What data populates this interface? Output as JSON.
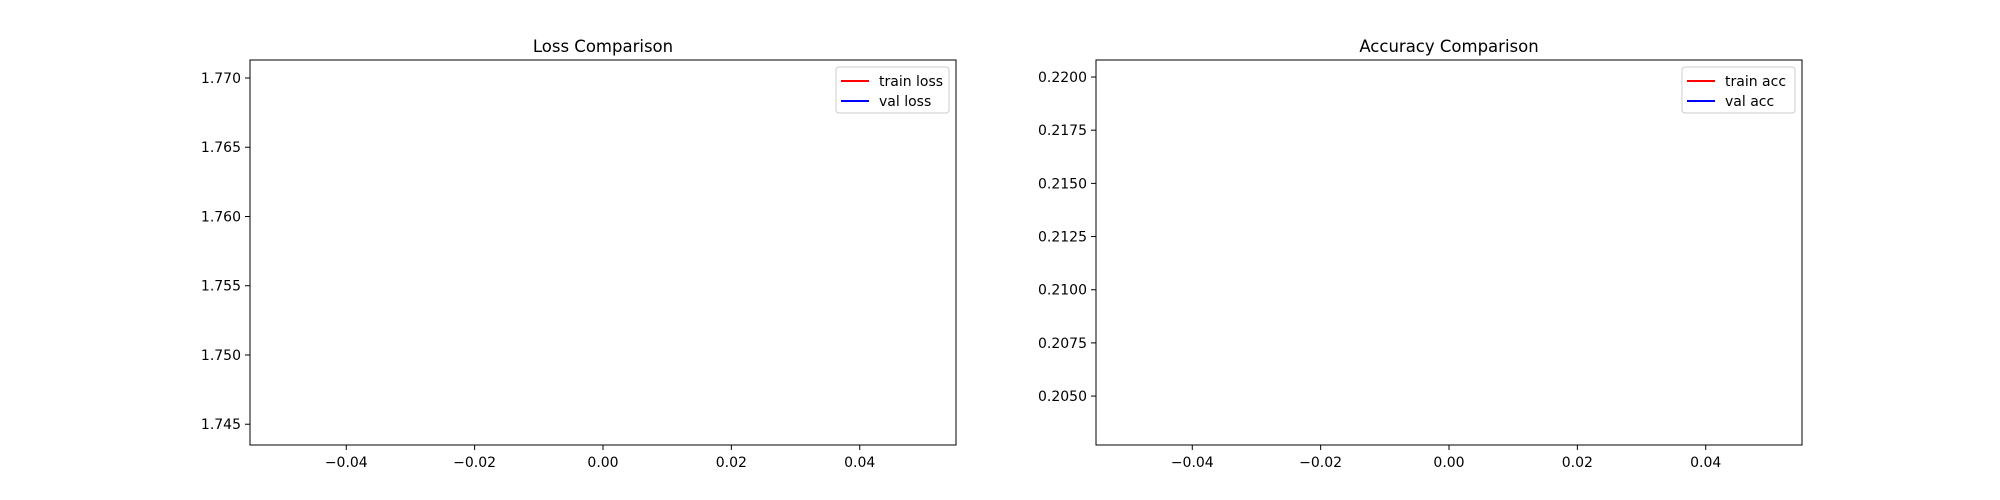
{
  "chart_data": [
    {
      "type": "line",
      "title": "Loss Comparison",
      "xlabel": "",
      "ylabel": "",
      "xlim": [
        -0.055,
        0.055
      ],
      "ylim": [
        1.7435,
        1.7713
      ],
      "xticks": [
        -0.04,
        -0.02,
        0.0,
        0.02,
        0.04
      ],
      "xtick_labels": [
        "−0.04",
        "−0.02",
        "0.00",
        "0.02",
        "0.04"
      ],
      "yticks": [
        1.745,
        1.75,
        1.755,
        1.76,
        1.765,
        1.77
      ],
      "ytick_labels": [
        "1.745",
        "1.750",
        "1.755",
        "1.760",
        "1.765",
        "1.770"
      ],
      "legend_position": "top-right",
      "series": [
        {
          "name": "train loss",
          "color": "#ff0000",
          "x": [],
          "y": []
        },
        {
          "name": "val loss",
          "color": "#0000ff",
          "x": [],
          "y": []
        }
      ]
    },
    {
      "type": "line",
      "title": "Accuracy Comparison",
      "xlabel": "",
      "ylabel": "",
      "xlim": [
        -0.055,
        0.055
      ],
      "ylim": [
        0.2027,
        0.2208
      ],
      "xticks": [
        -0.04,
        -0.02,
        0.0,
        0.02,
        0.04
      ],
      "xtick_labels": [
        "−0.04",
        "−0.02",
        "0.00",
        "0.02",
        "0.04"
      ],
      "yticks": [
        0.205,
        0.2075,
        0.21,
        0.2125,
        0.215,
        0.2175,
        0.22
      ],
      "ytick_labels": [
        "0.2050",
        "0.2075",
        "0.2100",
        "0.2125",
        "0.2150",
        "0.2175",
        "0.2200"
      ],
      "legend_position": "top-right",
      "series": [
        {
          "name": "train acc",
          "color": "#ff0000",
          "x": [],
          "y": []
        },
        {
          "name": "val acc",
          "color": "#0000ff",
          "x": [],
          "y": []
        }
      ]
    }
  ]
}
